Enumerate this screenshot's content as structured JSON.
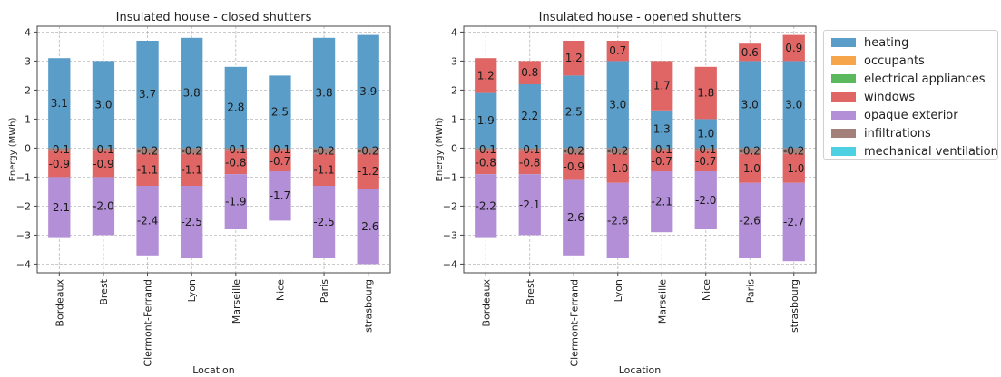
{
  "legend": {
    "items": [
      {
        "label": "heating",
        "color": "#5b9dc9"
      },
      {
        "label": "occupants",
        "color": "#f7a54b"
      },
      {
        "label": "electrical appliances",
        "color": "#5cb85c"
      },
      {
        "label": "windows",
        "color": "#e06666"
      },
      {
        "label": "opaque exterior",
        "color": "#b28fd6"
      },
      {
        "label": "infiltrations",
        "color": "#a38079"
      },
      {
        "label": "mechanical ventilation",
        "color": "#4dd0e1"
      }
    ]
  },
  "chart_data": [
    {
      "type": "bar",
      "stacked": true,
      "title": "Insulated house - closed shutters",
      "xlabel": "Location",
      "ylabel": "Energy (MWh)",
      "ylim": [
        -4.3,
        4.2
      ],
      "yticks": [
        4,
        3,
        2,
        1,
        0,
        -1,
        -2,
        -3,
        -4
      ],
      "grid": true,
      "categories": [
        "Bordeaux",
        "Brest",
        "Clermont-Ferrand",
        "Lyon",
        "Marseille",
        "Nice",
        "Paris",
        "strasbourg"
      ],
      "series": [
        {
          "name": "heating",
          "values": [
            3.1,
            3.0,
            3.7,
            3.8,
            2.8,
            2.5,
            3.8,
            3.9
          ]
        },
        {
          "name": "windows",
          "values": [
            0,
            0,
            0,
            0,
            0,
            0,
            0,
            0
          ]
        },
        {
          "name": "infiltrations",
          "values": [
            -0.1,
            -0.1,
            -0.2,
            -0.2,
            -0.1,
            -0.1,
            -0.2,
            -0.2
          ]
        },
        {
          "name": "windows",
          "values": [
            -0.9,
            -0.9,
            -1.1,
            -1.1,
            -0.8,
            -0.7,
            -1.1,
            -1.2
          ]
        },
        {
          "name": "opaque exterior",
          "values": [
            -2.1,
            -2.0,
            -2.4,
            -2.5,
            -1.9,
            -1.7,
            -2.5,
            -2.6
          ]
        }
      ],
      "labels": [
        {
          "text": [
            "3.1",
            "3.0",
            "3.7",
            "3.8",
            "2.8",
            "2.5",
            "3.8",
            "3.9"
          ]
        },
        {
          "text": [
            "-0.1",
            "-0.1",
            "-0.2",
            "-0.2",
            "-0.1",
            "-0.1",
            "-0.2",
            "-0.2"
          ]
        },
        {
          "text": [
            "-0.9",
            "-0.9",
            "-1.1",
            "-1.1",
            "-0.8",
            "-0.7",
            "-1.1",
            "-1.2"
          ]
        },
        {
          "text": [
            "-2.1",
            "-2.0",
            "-2.4",
            "-2.5",
            "-1.9",
            "-1.7",
            "-2.5",
            "-2.6"
          ]
        }
      ]
    },
    {
      "type": "bar",
      "stacked": true,
      "title": "Insulated house - opened shutters",
      "xlabel": "Location",
      "ylabel": "Energy (MWh)",
      "ylim": [
        -4.3,
        4.2
      ],
      "yticks": [
        4,
        3,
        2,
        1,
        0,
        -1,
        -2,
        -3,
        -4
      ],
      "grid": true,
      "categories": [
        "Bordeaux",
        "Brest",
        "Clermont-Ferrand",
        "Lyon",
        "Marseille",
        "Nice",
        "Paris",
        "strasbourg"
      ],
      "series": [
        {
          "name": "heating",
          "values": [
            1.9,
            2.2,
            2.5,
            3.0,
            1.3,
            1.0,
            3.0,
            3.0
          ]
        },
        {
          "name": "windows",
          "values": [
            1.2,
            0.8,
            1.2,
            0.7,
            1.7,
            1.8,
            0.6,
            0.9
          ]
        },
        {
          "name": "infiltrations",
          "values": [
            -0.1,
            -0.1,
            -0.2,
            -0.2,
            -0.1,
            -0.1,
            -0.2,
            -0.2
          ]
        },
        {
          "name": "windows",
          "values": [
            -0.8,
            -0.8,
            -0.9,
            -1.0,
            -0.7,
            -0.7,
            -1.0,
            -1.0
          ]
        },
        {
          "name": "opaque exterior",
          "values": [
            -2.2,
            -2.1,
            -2.6,
            -2.6,
            -2.1,
            -2.0,
            -2.6,
            -2.7
          ]
        }
      ],
      "labels": [
        {
          "text": [
            "1.9",
            "2.2",
            "2.5",
            "3.0",
            "1.3",
            "1.0",
            "3.0",
            "3.0"
          ]
        },
        {
          "text": [
            "1.2",
            "0.8",
            "1.2",
            "0.7",
            "1.7",
            "1.8",
            "0.6",
            "0.9"
          ]
        },
        {
          "text": [
            "-0.1",
            "-0.1",
            "-0.2",
            "-0.2",
            "-0.1",
            "-0.1",
            "-0.2",
            "-0.2"
          ]
        },
        {
          "text": [
            "-0.8",
            "-0.8",
            "-0.9",
            "-1.0",
            "-0.7",
            "-0.7",
            "-1.0",
            "-1.0"
          ]
        },
        {
          "text": [
            "-2.2",
            "-2.1",
            "-2.6",
            "-2.6",
            "-2.1",
            "-2.0",
            "-2.6",
            "-2.7"
          ]
        }
      ]
    }
  ]
}
